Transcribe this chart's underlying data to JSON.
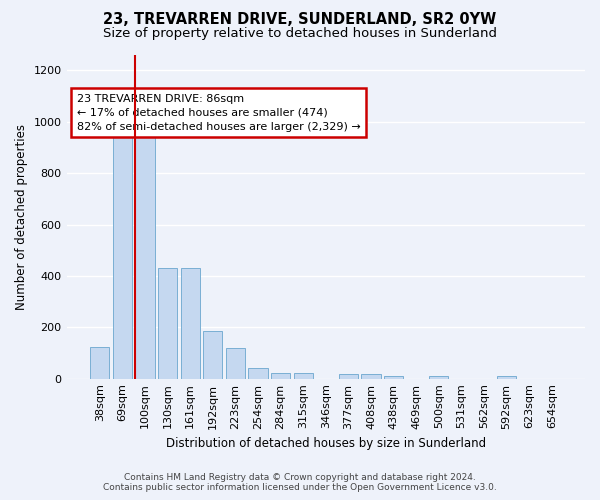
{
  "title": "23, TREVARREN DRIVE, SUNDERLAND, SR2 0YW",
  "subtitle": "Size of property relative to detached houses in Sunderland",
  "xlabel": "Distribution of detached houses by size in Sunderland",
  "ylabel": "Number of detached properties",
  "categories": [
    "38sqm",
    "69sqm",
    "100sqm",
    "130sqm",
    "161sqm",
    "192sqm",
    "223sqm",
    "254sqm",
    "284sqm",
    "315sqm",
    "346sqm",
    "377sqm",
    "408sqm",
    "438sqm",
    "469sqm",
    "500sqm",
    "531sqm",
    "562sqm",
    "592sqm",
    "623sqm",
    "654sqm"
  ],
  "values": [
    125,
    955,
    950,
    430,
    430,
    185,
    120,
    42,
    22,
    22,
    0,
    18,
    18,
    10,
    0,
    10,
    0,
    0,
    10,
    0,
    0
  ],
  "bar_color": "#c5d8f0",
  "bar_edge_color": "#7aafd4",
  "property_line_x": 1.57,
  "annotation_text": "23 TREVARREN DRIVE: 86sqm\n← 17% of detached houses are smaller (474)\n82% of semi-detached houses are larger (2,329) →",
  "annotation_box_color": "#ffffff",
  "annotation_box_edge_color": "#cc0000",
  "vline_color": "#cc0000",
  "ylim": [
    0,
    1260
  ],
  "yticks": [
    0,
    200,
    400,
    600,
    800,
    1000,
    1200
  ],
  "footer_line1": "Contains HM Land Registry data © Crown copyright and database right 2024.",
  "footer_line2": "Contains public sector information licensed under the Open Government Licence v3.0.",
  "bg_color": "#eef2fa",
  "grid_color": "#ffffff",
  "title_fontsize": 10.5,
  "subtitle_fontsize": 9.5,
  "axis_label_fontsize": 8.5,
  "tick_fontsize": 8,
  "annotation_fontsize": 8
}
